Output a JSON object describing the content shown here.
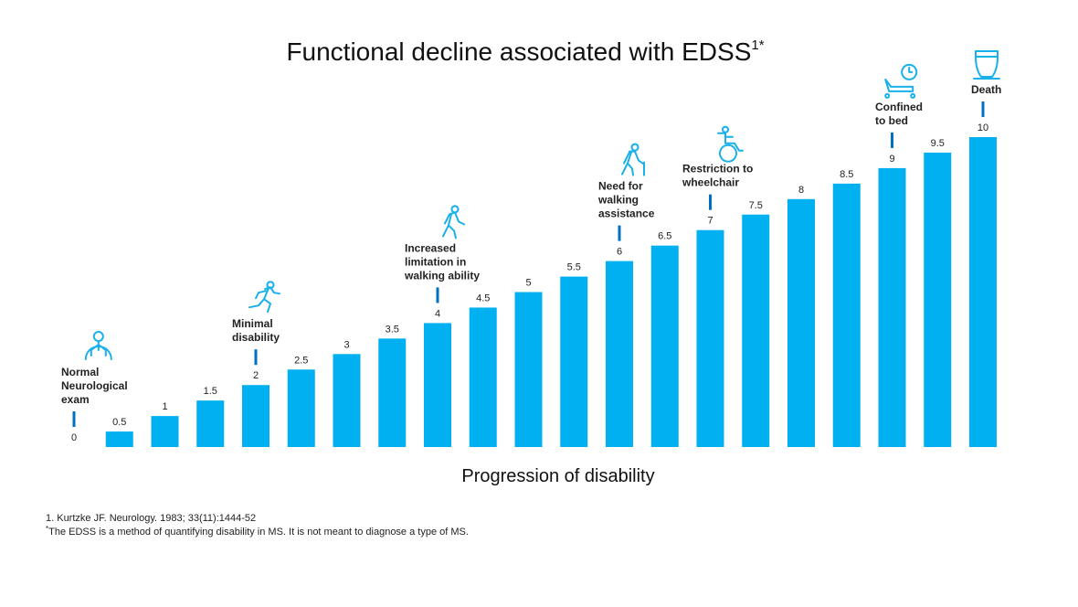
{
  "chart_data": {
    "type": "bar",
    "title": "Functional decline associated with EDSS",
    "title_superscript": "1*",
    "xlabel": "Progression of disability",
    "ylabel": "",
    "categories": [
      "0",
      "0.5",
      "1",
      "1.5",
      "2",
      "2.5",
      "3",
      "3.5",
      "4",
      "4.5",
      "5",
      "5.5",
      "6",
      "6.5",
      "7",
      "7.5",
      "8",
      "8.5",
      "9",
      "9.5",
      "10"
    ],
    "values": [
      0,
      0.5,
      1,
      1.5,
      2,
      2.5,
      3,
      3.5,
      4,
      4.5,
      5,
      5.5,
      6,
      6.5,
      7,
      7.5,
      8,
      8.5,
      9,
      9.5,
      10
    ],
    "ylim": [
      0,
      10
    ],
    "grid": false,
    "bar_color": "#00b0f0",
    "marker_color": "#0070c0",
    "annotations": [
      {
        "value": 0,
        "lines": [
          "Normal",
          "Neurological",
          "exam"
        ],
        "icon": "brain-head-icon"
      },
      {
        "value": 2,
        "lines": [
          "Minimal",
          "disability"
        ],
        "icon": "running-person-icon"
      },
      {
        "value": 4,
        "lines": [
          "Increased",
          "limitation in",
          "walking ability"
        ],
        "icon": "walking-person-icon"
      },
      {
        "value": 6,
        "lines": [
          "Need for",
          "walking",
          "assistance"
        ],
        "icon": "person-with-cane-icon"
      },
      {
        "value": 7,
        "lines": [
          "Restriction  to",
          "wheelchair"
        ],
        "icon": "wheelchair-icon"
      },
      {
        "value": 9,
        "lines": [
          "Confined",
          "to bed"
        ],
        "icon": "bed-with-clock-icon"
      },
      {
        "value": 10,
        "lines": [
          "Death"
        ],
        "icon": "urn-icon"
      }
    ]
  },
  "footnotes": [
    "1. Kurtzke JF. Neurology.  1983; 33(11):1444-52",
    "The EDSS is a method of quantifying  disability in MS. It is not meant to diagnose  a type of MS."
  ],
  "footnote_marker": "*"
}
